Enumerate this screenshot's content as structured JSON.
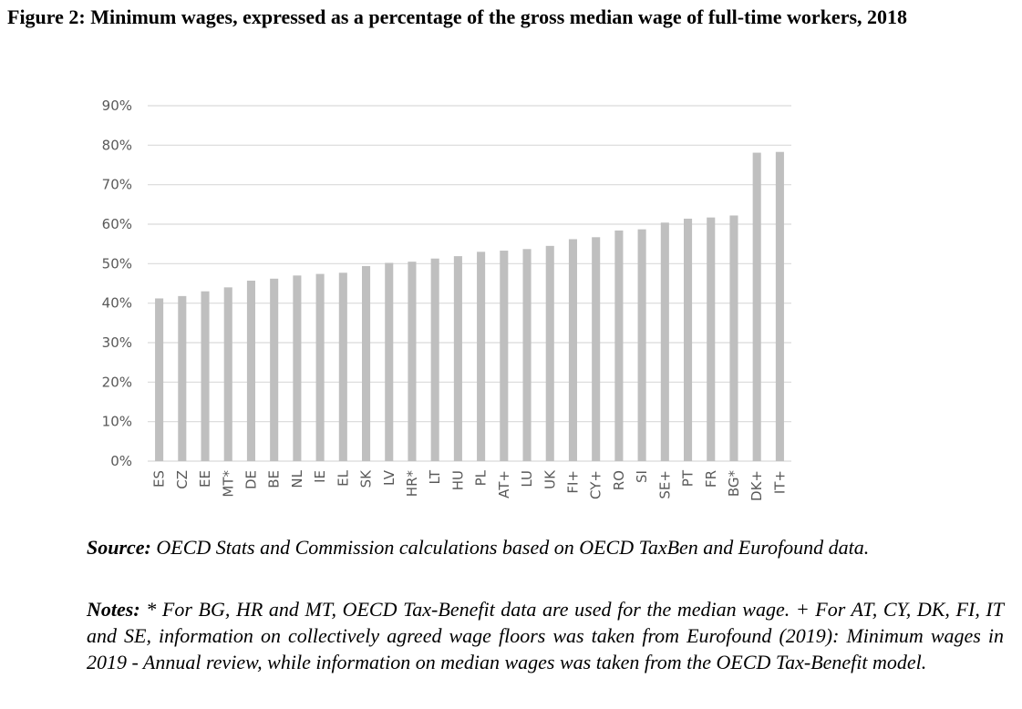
{
  "figure": {
    "title": "Figure 2: Minimum wages, expressed as a percentage of the gross median wage of full-time workers, 2018"
  },
  "chart_data": {
    "type": "bar",
    "title": "",
    "xlabel": "",
    "ylabel": "",
    "ylim": [
      0,
      90
    ],
    "y_ticks": [
      "0%",
      "10%",
      "20%",
      "30%",
      "40%",
      "50%",
      "60%",
      "70%",
      "80%",
      "90%"
    ],
    "y_tick_values": [
      0,
      10,
      20,
      30,
      40,
      50,
      60,
      70,
      80,
      90
    ],
    "grid": true,
    "legend": "none",
    "bar_color": "#bfbfbf",
    "categories": [
      "ES",
      "CZ",
      "EE",
      "MT*",
      "DE",
      "BE",
      "NL",
      "IE",
      "EL",
      "SK",
      "LV",
      "HR*",
      "LT",
      "HU",
      "PL",
      "AT+",
      "LU",
      "UK",
      "FI+",
      "CY+",
      "RO",
      "SI",
      "SE+",
      "PT",
      "FR",
      "BG*",
      "DK+",
      "IT+"
    ],
    "values": [
      41.2,
      41.8,
      43.0,
      44.0,
      45.7,
      46.2,
      47.0,
      47.4,
      47.7,
      49.4,
      50.2,
      50.5,
      51.3,
      51.9,
      53.0,
      53.3,
      53.7,
      54.5,
      56.2,
      56.7,
      58.4,
      58.7,
      60.4,
      61.4,
      61.7,
      62.2,
      78.1,
      78.3
    ]
  },
  "source": {
    "label": "Source:",
    "text": " OECD Stats and Commission calculations based on OECD TaxBen and Eurofound data."
  },
  "notes": {
    "label": "Notes:",
    "text": " * For BG, HR and MT, OECD Tax-Benefit data are used for the median wage. + For AT, CY, DK, FI, IT and SE, information on collectively agreed wage floors was taken from Eurofound (2019): Minimum wages in 2019 - Annual review, while information on median wages was taken from the OECD Tax-Benefit model."
  }
}
